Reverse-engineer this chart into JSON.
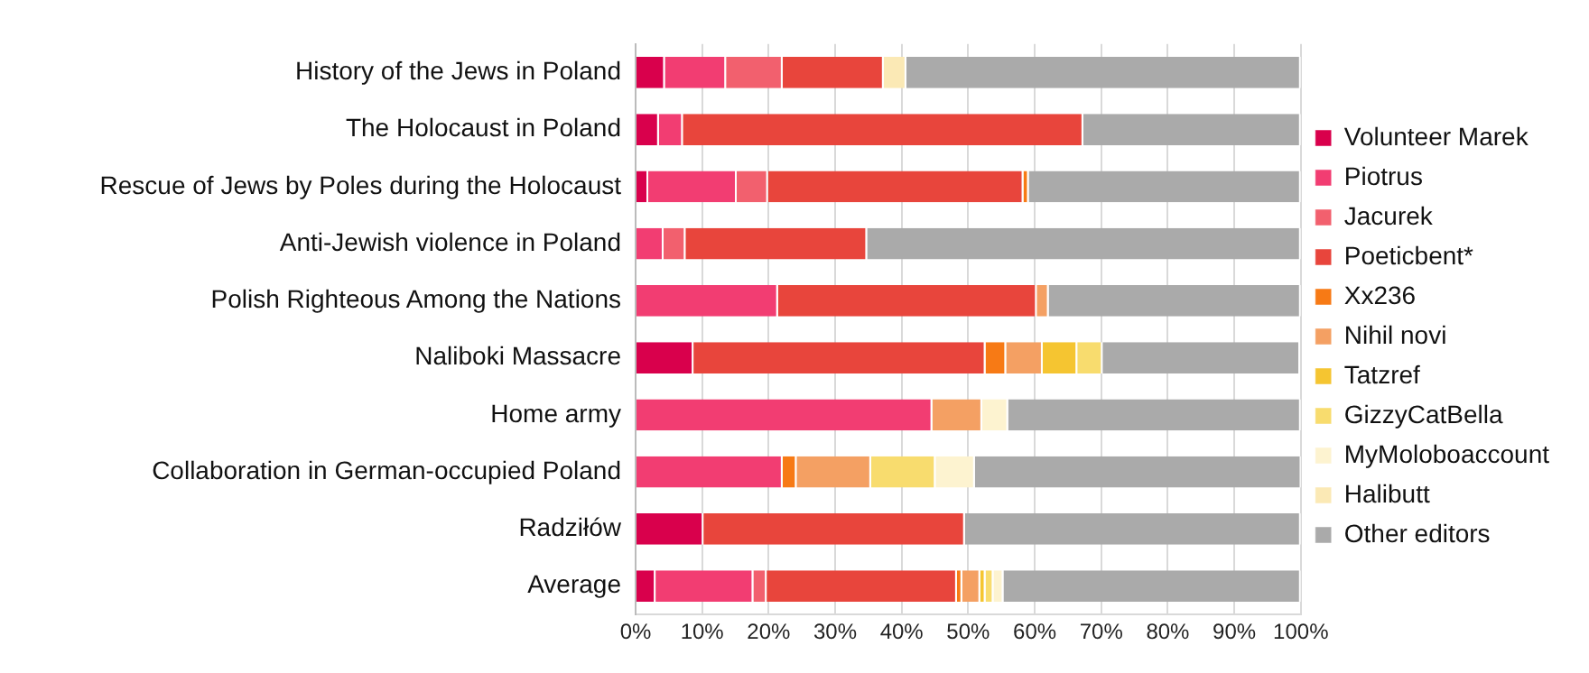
{
  "chart_data": {
    "type": "bar",
    "orientation": "horizontal",
    "stacked": true,
    "legend": "right",
    "grid": "x",
    "categories": [
      "History of the Jews in Poland",
      "The Holocaust in Poland",
      "Rescue of Jews by Poles during the Holocaust",
      "Anti-Jewish violence in Poland",
      "Polish Righteous Among the Nations",
      "Naliboki Massacre",
      "Home army",
      "Collaboration in German-occupied Poland",
      "Radziłów",
      "Average"
    ],
    "xlim": [
      0,
      100
    ],
    "xticks": [
      {
        "value": 0,
        "label": "0%"
      },
      {
        "value": 10,
        "label": "10%"
      },
      {
        "value": 20,
        "label": "20%"
      },
      {
        "value": 30,
        "label": "30%"
      },
      {
        "value": 40,
        "label": "40%"
      },
      {
        "value": 50,
        "label": "50%"
      },
      {
        "value": 60,
        "label": "60%"
      },
      {
        "value": 70,
        "label": "70%"
      },
      {
        "value": 80,
        "label": "80%"
      },
      {
        "value": 90,
        "label": "90%"
      },
      {
        "value": 100,
        "label": "100%"
      }
    ],
    "series": [
      {
        "name": "Volunteer Marek",
        "color": "#d9004c",
        "values": [
          4.4,
          3.5,
          1.9,
          null,
          null,
          8.7,
          null,
          null,
          10.2,
          3.0
        ]
      },
      {
        "name": "Piotrus",
        "color": "#f23d72",
        "values": [
          9.2,
          3.6,
          13.3,
          4.2,
          21.4,
          null,
          44.6,
          22.1,
          null,
          14.7
        ]
      },
      {
        "name": "Jacurek",
        "color": "#f2606e",
        "values": [
          8.5,
          null,
          4.7,
          3.3,
          null,
          null,
          null,
          null,
          null,
          2.0
        ]
      },
      {
        "name": "Poeticbent*",
        "color": "#e8453c",
        "values": [
          15.2,
          60.2,
          38.4,
          27.3,
          38.9,
          43.9,
          null,
          null,
          39.3,
          28.6
        ]
      },
      {
        "name": "Xx236",
        "color": "#f77a15",
        "values": [
          null,
          null,
          0.8,
          null,
          null,
          3.1,
          null,
          2.1,
          null,
          0.8
        ]
      },
      {
        "name": "Nihil novi",
        "color": "#f4a063",
        "values": [
          null,
          null,
          null,
          null,
          1.8,
          5.5,
          7.5,
          11.2,
          null,
          2.7
        ]
      },
      {
        "name": "Tatzref",
        "color": "#f5c531",
        "values": [
          null,
          null,
          null,
          null,
          null,
          5.2,
          null,
          null,
          null,
          0.8
        ]
      },
      {
        "name": "GizzyCatBella",
        "color": "#f8dc6e",
        "values": [
          null,
          null,
          null,
          null,
          null,
          3.8,
          null,
          9.7,
          null,
          1.2
        ]
      },
      {
        "name": "MyMoloboaccount",
        "color": "#fdf3d0",
        "values": [
          null,
          null,
          null,
          null,
          null,
          null,
          3.9,
          5.9,
          null,
          1.5
        ]
      },
      {
        "name": "Halibutt",
        "color": "#fbe9b5",
        "values": [
          3.4,
          null,
          null,
          null,
          null,
          null,
          null,
          null,
          null,
          null
        ]
      },
      {
        "name": "Other editors",
        "color": "#aaaaaa",
        "values": [
          59.3,
          32.7,
          40.9,
          65.2,
          37.9,
          29.7,
          44.0,
          49.1,
          50.5,
          44.7
        ]
      }
    ]
  }
}
